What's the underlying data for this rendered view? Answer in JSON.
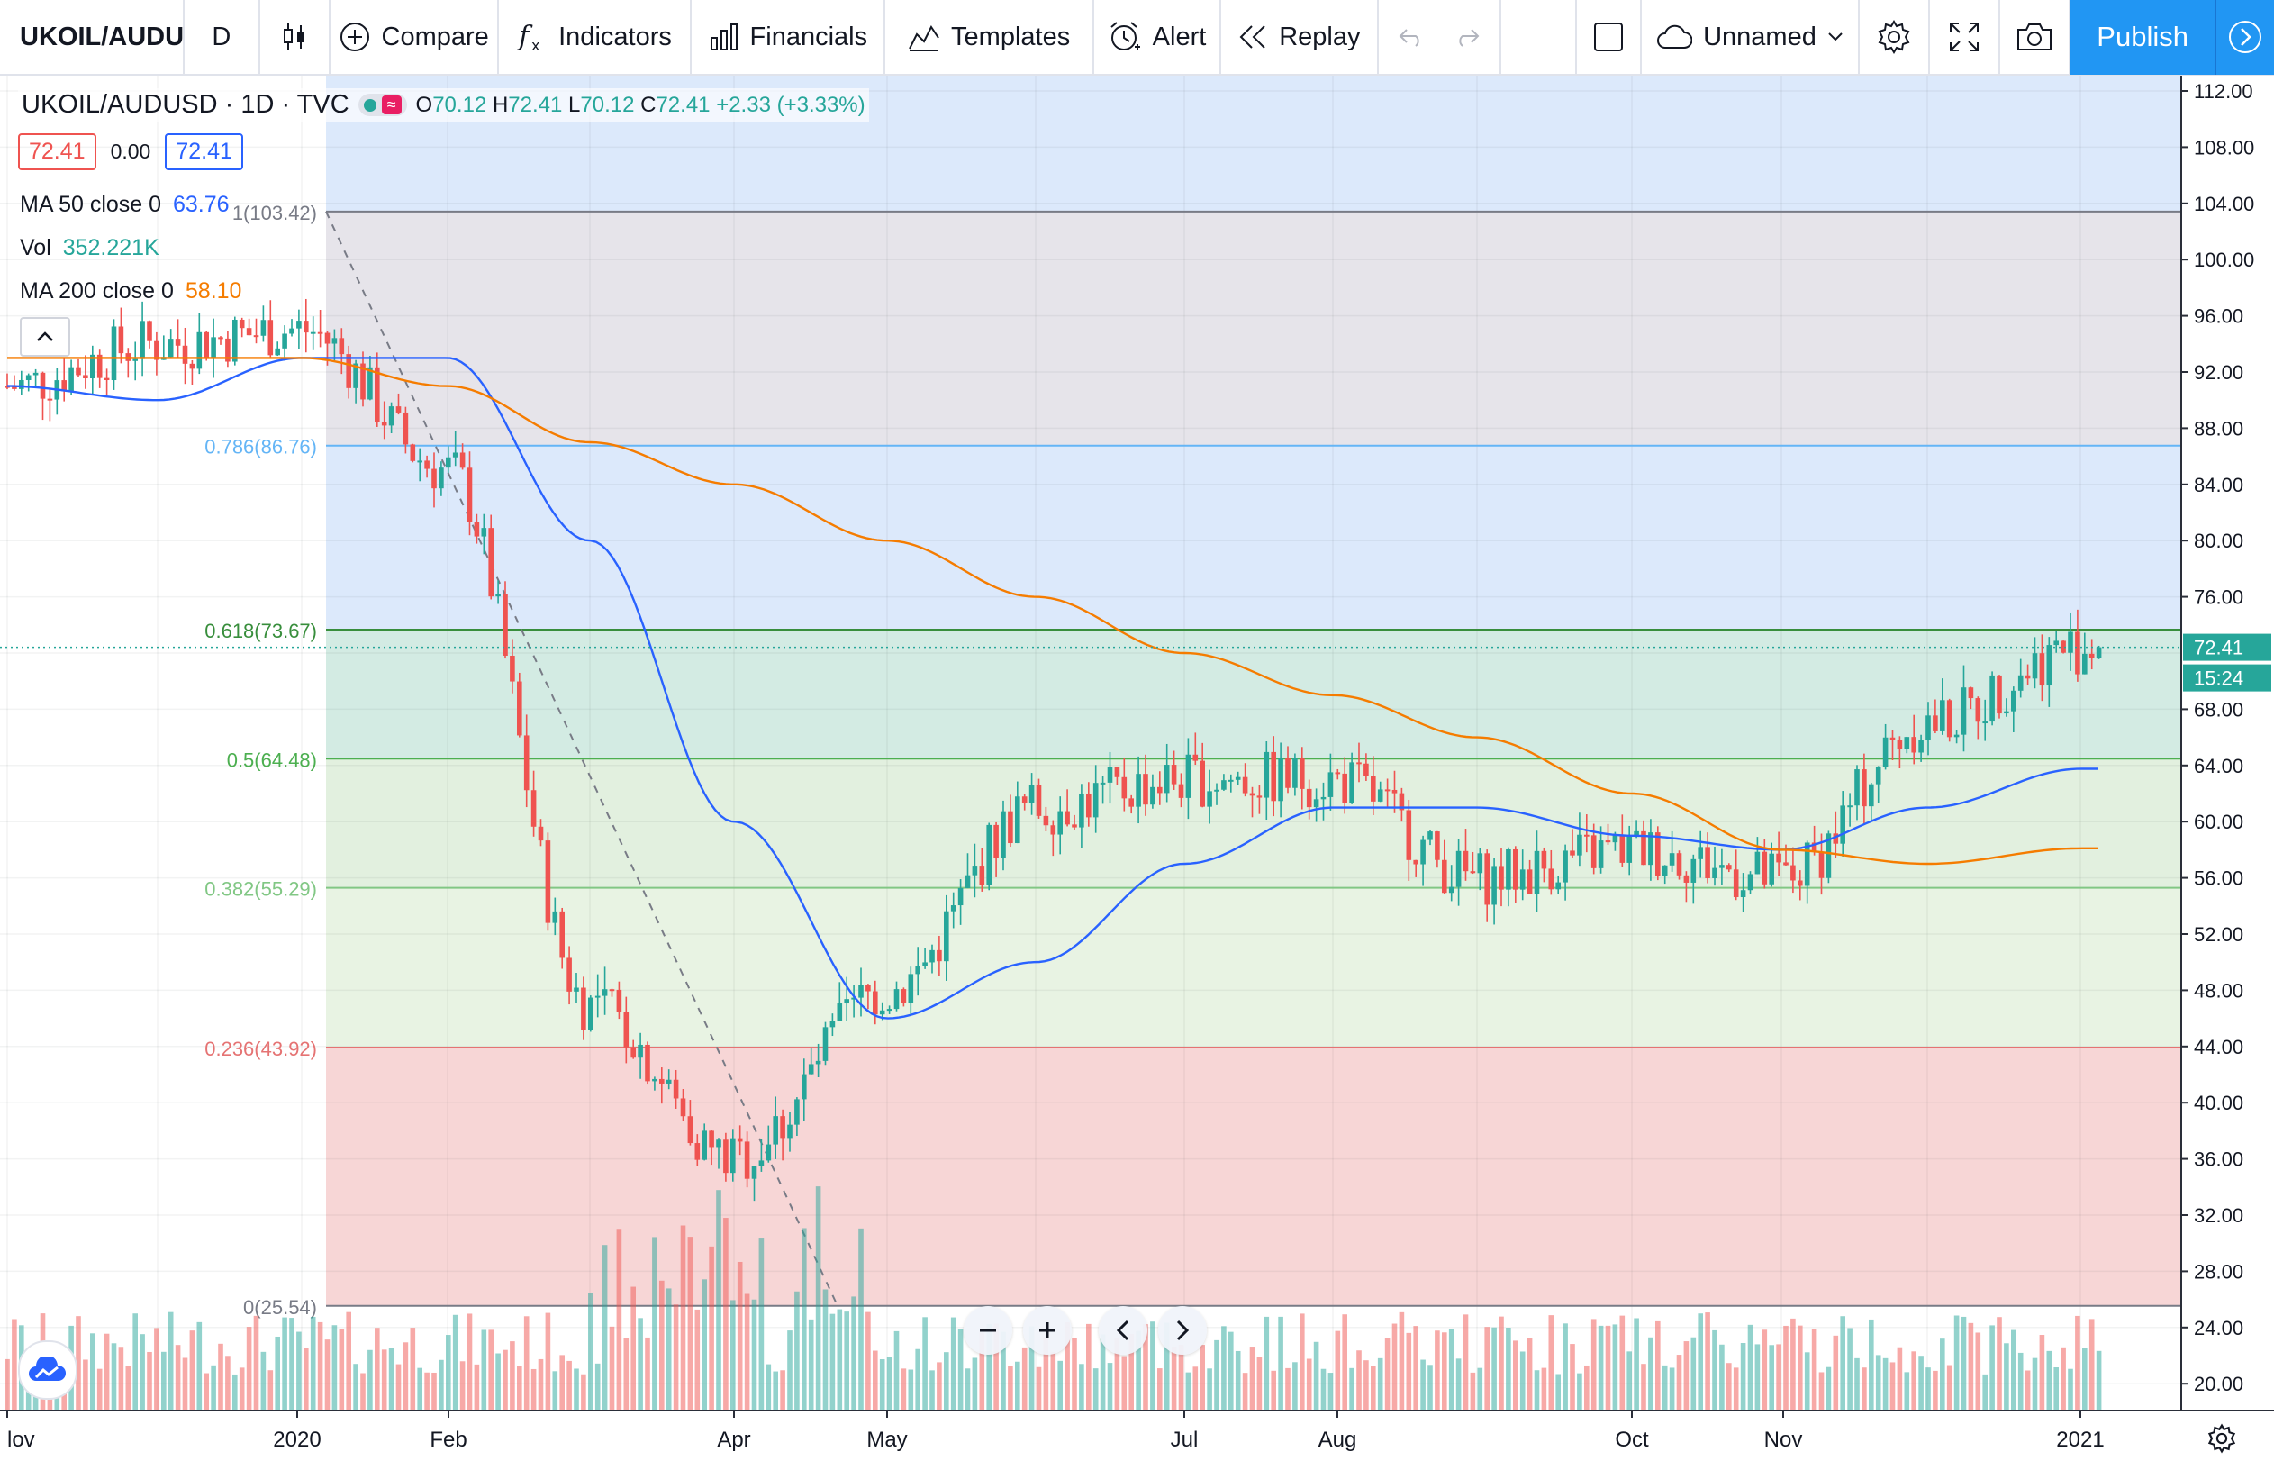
{
  "toolbar": {
    "symbol": "UKOIL/AUDU",
    "interval": "D",
    "compare": "Compare",
    "indicators": "Indicators",
    "financials": "Financials",
    "templates": "Templates",
    "alert": "Alert",
    "replay": "Replay",
    "layout_name": "Unnamed",
    "publish": "Publish"
  },
  "legend": {
    "title": "UKOIL/AUDUSD · 1D · TVC",
    "open_label": "O",
    "open": "70.12",
    "high_label": "H",
    "high": "72.41",
    "low_label": "L",
    "low": "70.12",
    "close_label": "C",
    "close": "72.41",
    "change": "+2.33 (+3.33%)",
    "price_left": "72.41",
    "spread": "0.00",
    "price_right": "72.41"
  },
  "indicators": {
    "ma50_label": "MA 50 close 0",
    "ma50_value": "63.76",
    "vol_label": "Vol",
    "vol_value": "352.221K",
    "ma200_label": "MA 200 close 0",
    "ma200_value": "58.10"
  },
  "colors": {
    "up": "#26a69a",
    "down": "#ef5350",
    "ma50": "#2962ff",
    "ma200": "#f57c00",
    "accent": "#2196f3"
  },
  "fib_levels": [
    {
      "label": "1(103.42)",
      "value": 103.42,
      "color": "#787b86",
      "fill": "#e6e4ea"
    },
    {
      "label": "0.786(86.76)",
      "value": 86.76,
      "color": "#64b5f6",
      "fill": "#dce9fb"
    },
    {
      "label": "0.618(73.67)",
      "value": 73.67,
      "color": "#388e3c",
      "fill": "#d3ebe3"
    },
    {
      "label": "0.5(64.48)",
      "value": 64.48,
      "color": "#4caf50",
      "fill": "#e2f0df"
    },
    {
      "label": "0.382(55.29)",
      "value": 55.29,
      "color": "#81c784",
      "fill": "#e8f3e3"
    },
    {
      "label": "0.236(43.92)",
      "value": 43.92,
      "color": "#e57373",
      "fill": "#f7d6d6"
    },
    {
      "label": "0(25.54)",
      "value": 25.54,
      "color": "#787b86",
      "fill": ""
    }
  ],
  "price_axis": {
    "ticks": [
      "112.00",
      "108.00",
      "104.00",
      "100.00",
      "96.00",
      "92.00",
      "88.00",
      "84.00",
      "80.00",
      "76.00",
      "68.00",
      "64.00",
      "60.00",
      "56.00",
      "52.00",
      "48.00",
      "44.00",
      "40.00",
      "36.00",
      "32.00",
      "28.00",
      "24.00",
      "20.00"
    ],
    "last_price": "72.41",
    "countdown": "15:24"
  },
  "time_axis": {
    "labels": [
      "lov",
      "2020",
      "Feb",
      "Apr",
      "May",
      "Jul",
      "Aug",
      "Oct",
      "Nov",
      "2021"
    ]
  },
  "chart_data": {
    "type": "line",
    "title": "UKOIL/AUDUSD · 1D · TVC",
    "xlabel": "",
    "ylabel": "",
    "ylim": [
      18,
      114
    ],
    "x": [
      "2019-11",
      "2019-12",
      "2020-01",
      "2020-02",
      "2020-03",
      "2020-04",
      "2020-05",
      "2020-06",
      "2020-07",
      "2020-08",
      "2020-09",
      "2020-10",
      "2020-11",
      "2020-12",
      "2021-01"
    ],
    "series": [
      {
        "name": "UKOIL/AUDUSD",
        "values": [
          91,
          94,
          95,
          85,
          47,
          36,
          48,
          61,
          63,
          63,
          56,
          58,
          56,
          67,
          72.41
        ]
      },
      {
        "name": "MA 50 close 0",
        "values": [
          91,
          90,
          93,
          93,
          80,
          60,
          46,
          50,
          57,
          61,
          61,
          59,
          58,
          61,
          63.76
        ]
      },
      {
        "name": "MA 200 close 0",
        "values": [
          93,
          93,
          93,
          91,
          87,
          84,
          80,
          76,
          72,
          69,
          66,
          62,
          58,
          57,
          58.1
        ]
      }
    ],
    "fib_retracement": {
      "from": 103.42,
      "to": 25.54
    }
  }
}
